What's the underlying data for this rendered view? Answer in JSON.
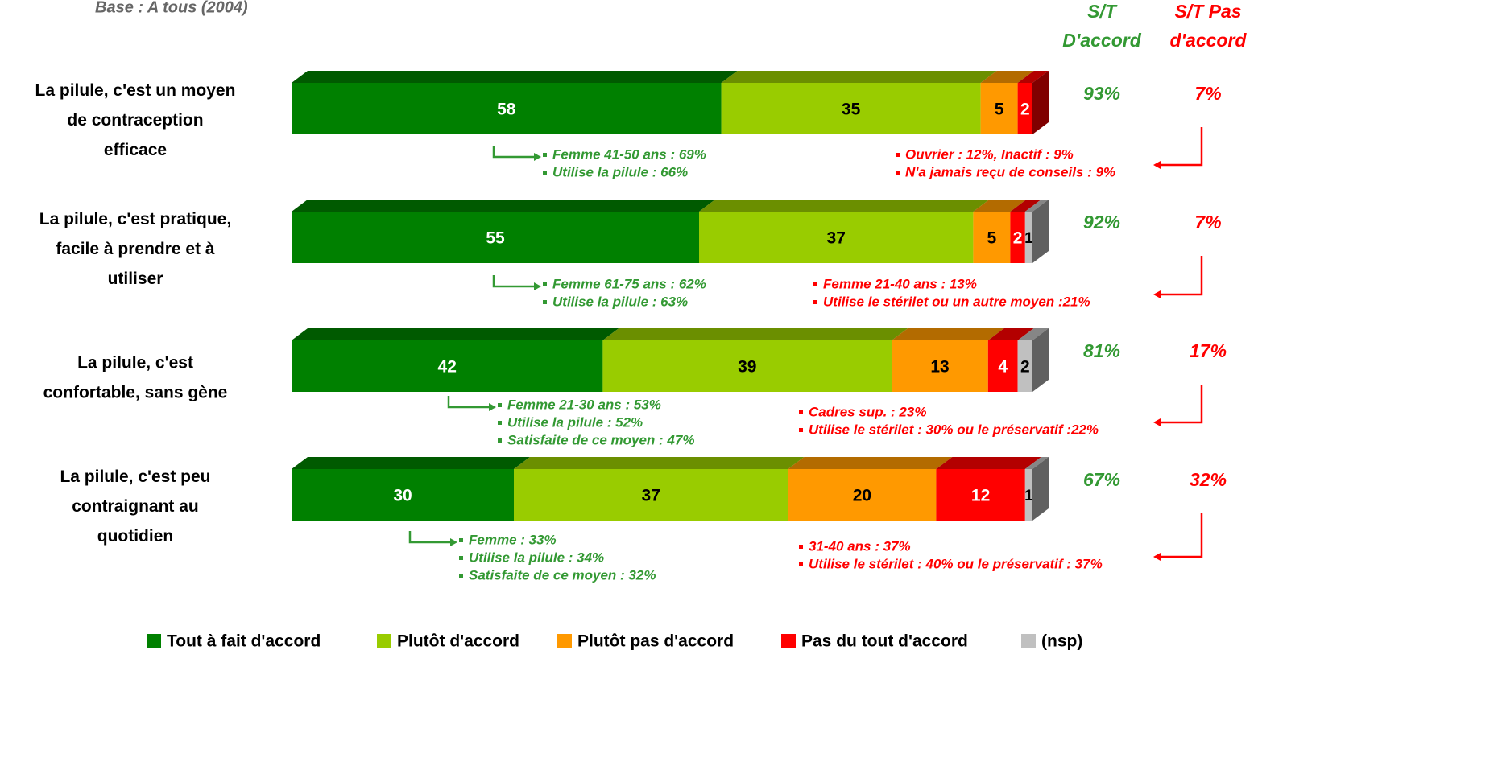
{
  "chart_data": {
    "type": "bar",
    "subtitle": "Base : A tous (2004)",
    "categories": [
      "La pilule, c'est un moyen\nde contraception\nefficace",
      "La pilule, c'est pratique,\nfacile à prendre et à\nutiliser",
      "La pilule, c'est\nconfortable, sans gène",
      "La pilule, c'est peu\ncontraignant au\nquotidien"
    ],
    "series": [
      {
        "name": "Tout à fait d'accord",
        "color": "#008000",
        "label_color": "#ffffff",
        "values": [
          58,
          55,
          42,
          30
        ]
      },
      {
        "name": "Plutôt d'accord",
        "color": "#99cc00",
        "label_color": "#000000",
        "values": [
          35,
          37,
          39,
          37
        ]
      },
      {
        "name": "Plutôt pas d'accord",
        "color": "#ff9900",
        "label_color": "#000000",
        "values": [
          5,
          5,
          13,
          20
        ]
      },
      {
        "name": "Pas du tout d'accord",
        "color": "#ff0000",
        "label_color": "#ffffff",
        "values": [
          2,
          2,
          4,
          12
        ]
      },
      {
        "name": "(nsp)",
        "color": "#c0c0c0",
        "label_color": "#000000",
        "values": [
          null,
          1,
          2,
          1
        ]
      }
    ],
    "totals": [
      {
        "header": "S/T\nD'accord",
        "color": "#339933",
        "values": [
          93,
          92,
          81,
          67
        ],
        "value_labels": [
          "93%",
          "92%",
          "81%",
          "67%"
        ]
      },
      {
        "header": "S/T Pas\nd'accord",
        "color": "#ff0000",
        "values": [
          7,
          7,
          17,
          32
        ],
        "value_labels": [
          "7%",
          "7%",
          "17%",
          "32%"
        ]
      }
    ],
    "annotations": [
      {
        "agree": [
          "Femme 41-50 ans : 69%",
          "Utilise la pilule : 66%"
        ],
        "disagree": [
          "Ouvrier : 12%,  Inactif : 9%",
          "N'a jamais reçu de conseils : 9%"
        ]
      },
      {
        "agree": [
          "Femme 61-75 ans : 62%",
          "Utilise la pilule : 63%"
        ],
        "disagree": [
          "Femme 21-40 ans : 13%",
          "Utilise le stérilet ou un autre moyen :21%"
        ]
      },
      {
        "agree": [
          "Femme 21-30 ans : 53%",
          "Utilise la pilule : 52%",
          "Satisfaite de ce moyen : 47%"
        ],
        "disagree": [
          "Cadres sup. : 23%",
          "Utilise le stérilet : 30% ou le préservatif :22%"
        ]
      },
      {
        "agree": [
          "Femme : 33%",
          "Utilise la pilule : 34%",
          "Satisfaite de ce moyen : 32%"
        ],
        "disagree": [
          "31-40 ans : 37%",
          "Utilise le stérilet : 40% ou le préservatif : 37%"
        ]
      }
    ]
  }
}
